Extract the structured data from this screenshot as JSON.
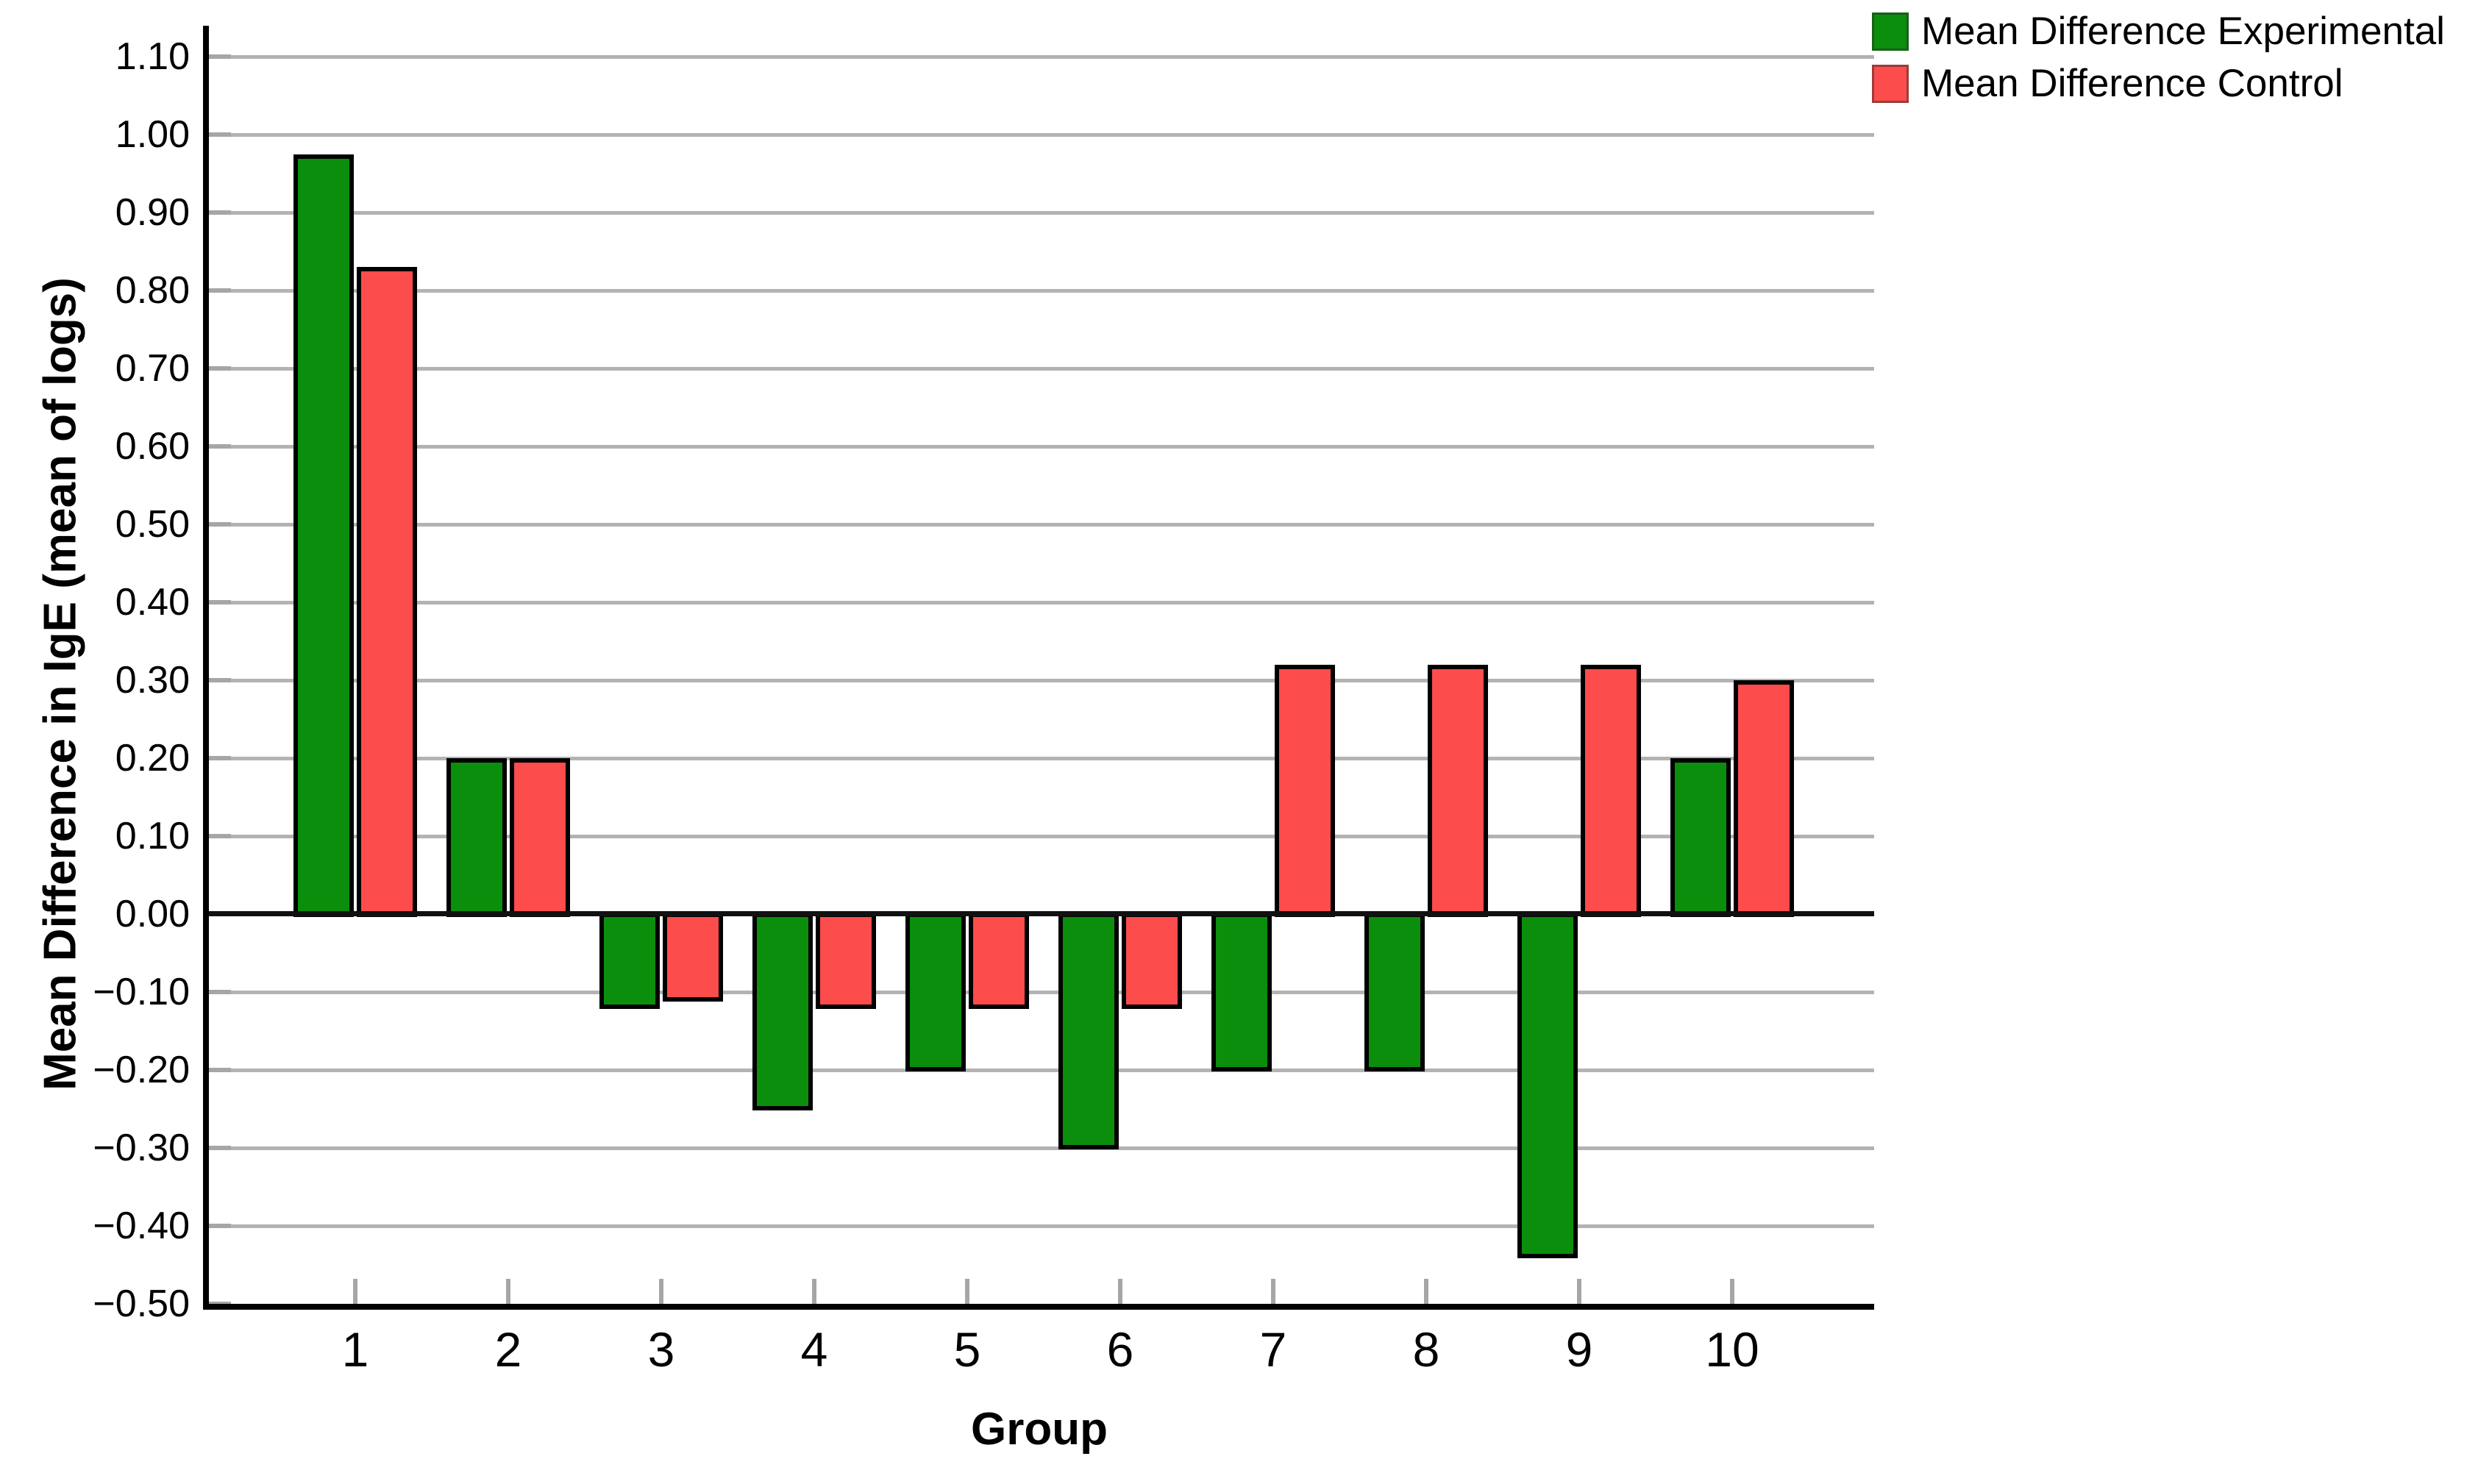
{
  "chart_data": {
    "type": "bar",
    "title": "",
    "xlabel": "Group",
    "ylabel": "Mean Difference in IgE (mean of logs)",
    "categories": [
      "1",
      "2",
      "3",
      "4",
      "5",
      "6",
      "7",
      "8",
      "9",
      "10"
    ],
    "series": [
      {
        "name": "Mean Difference Experimental",
        "color": "#0b8e0b",
        "values": [
          0.975,
          0.2,
          -0.12,
          -0.25,
          -0.2,
          -0.3,
          -0.2,
          -0.2,
          -0.44,
          0.2
        ]
      },
      {
        "name": "Mean Difference Control",
        "color": "#fc4c4c",
        "values": [
          0.83,
          0.2,
          -0.11,
          -0.12,
          -0.12,
          -0.12,
          0.32,
          0.32,
          0.32,
          0.3
        ]
      }
    ],
    "ylim": [
      -0.5,
      1.1
    ],
    "ytick_step": 0.1,
    "ytick_labels": [
      "1.10",
      "1.00",
      "0.90",
      "0.80",
      "0.70",
      "0.60",
      "0.50",
      "0.40",
      "0.30",
      "0.20",
      "0.10",
      "0.00",
      "−0.10",
      "−0.20",
      "−0.30",
      "−0.40",
      "−0.50"
    ],
    "grid": true,
    "legend_position": "top-right",
    "axis_color": "#000000",
    "gridline_color": "#b3b3b3",
    "zero_line_color": "#111111",
    "background_color": "#ffffff"
  }
}
